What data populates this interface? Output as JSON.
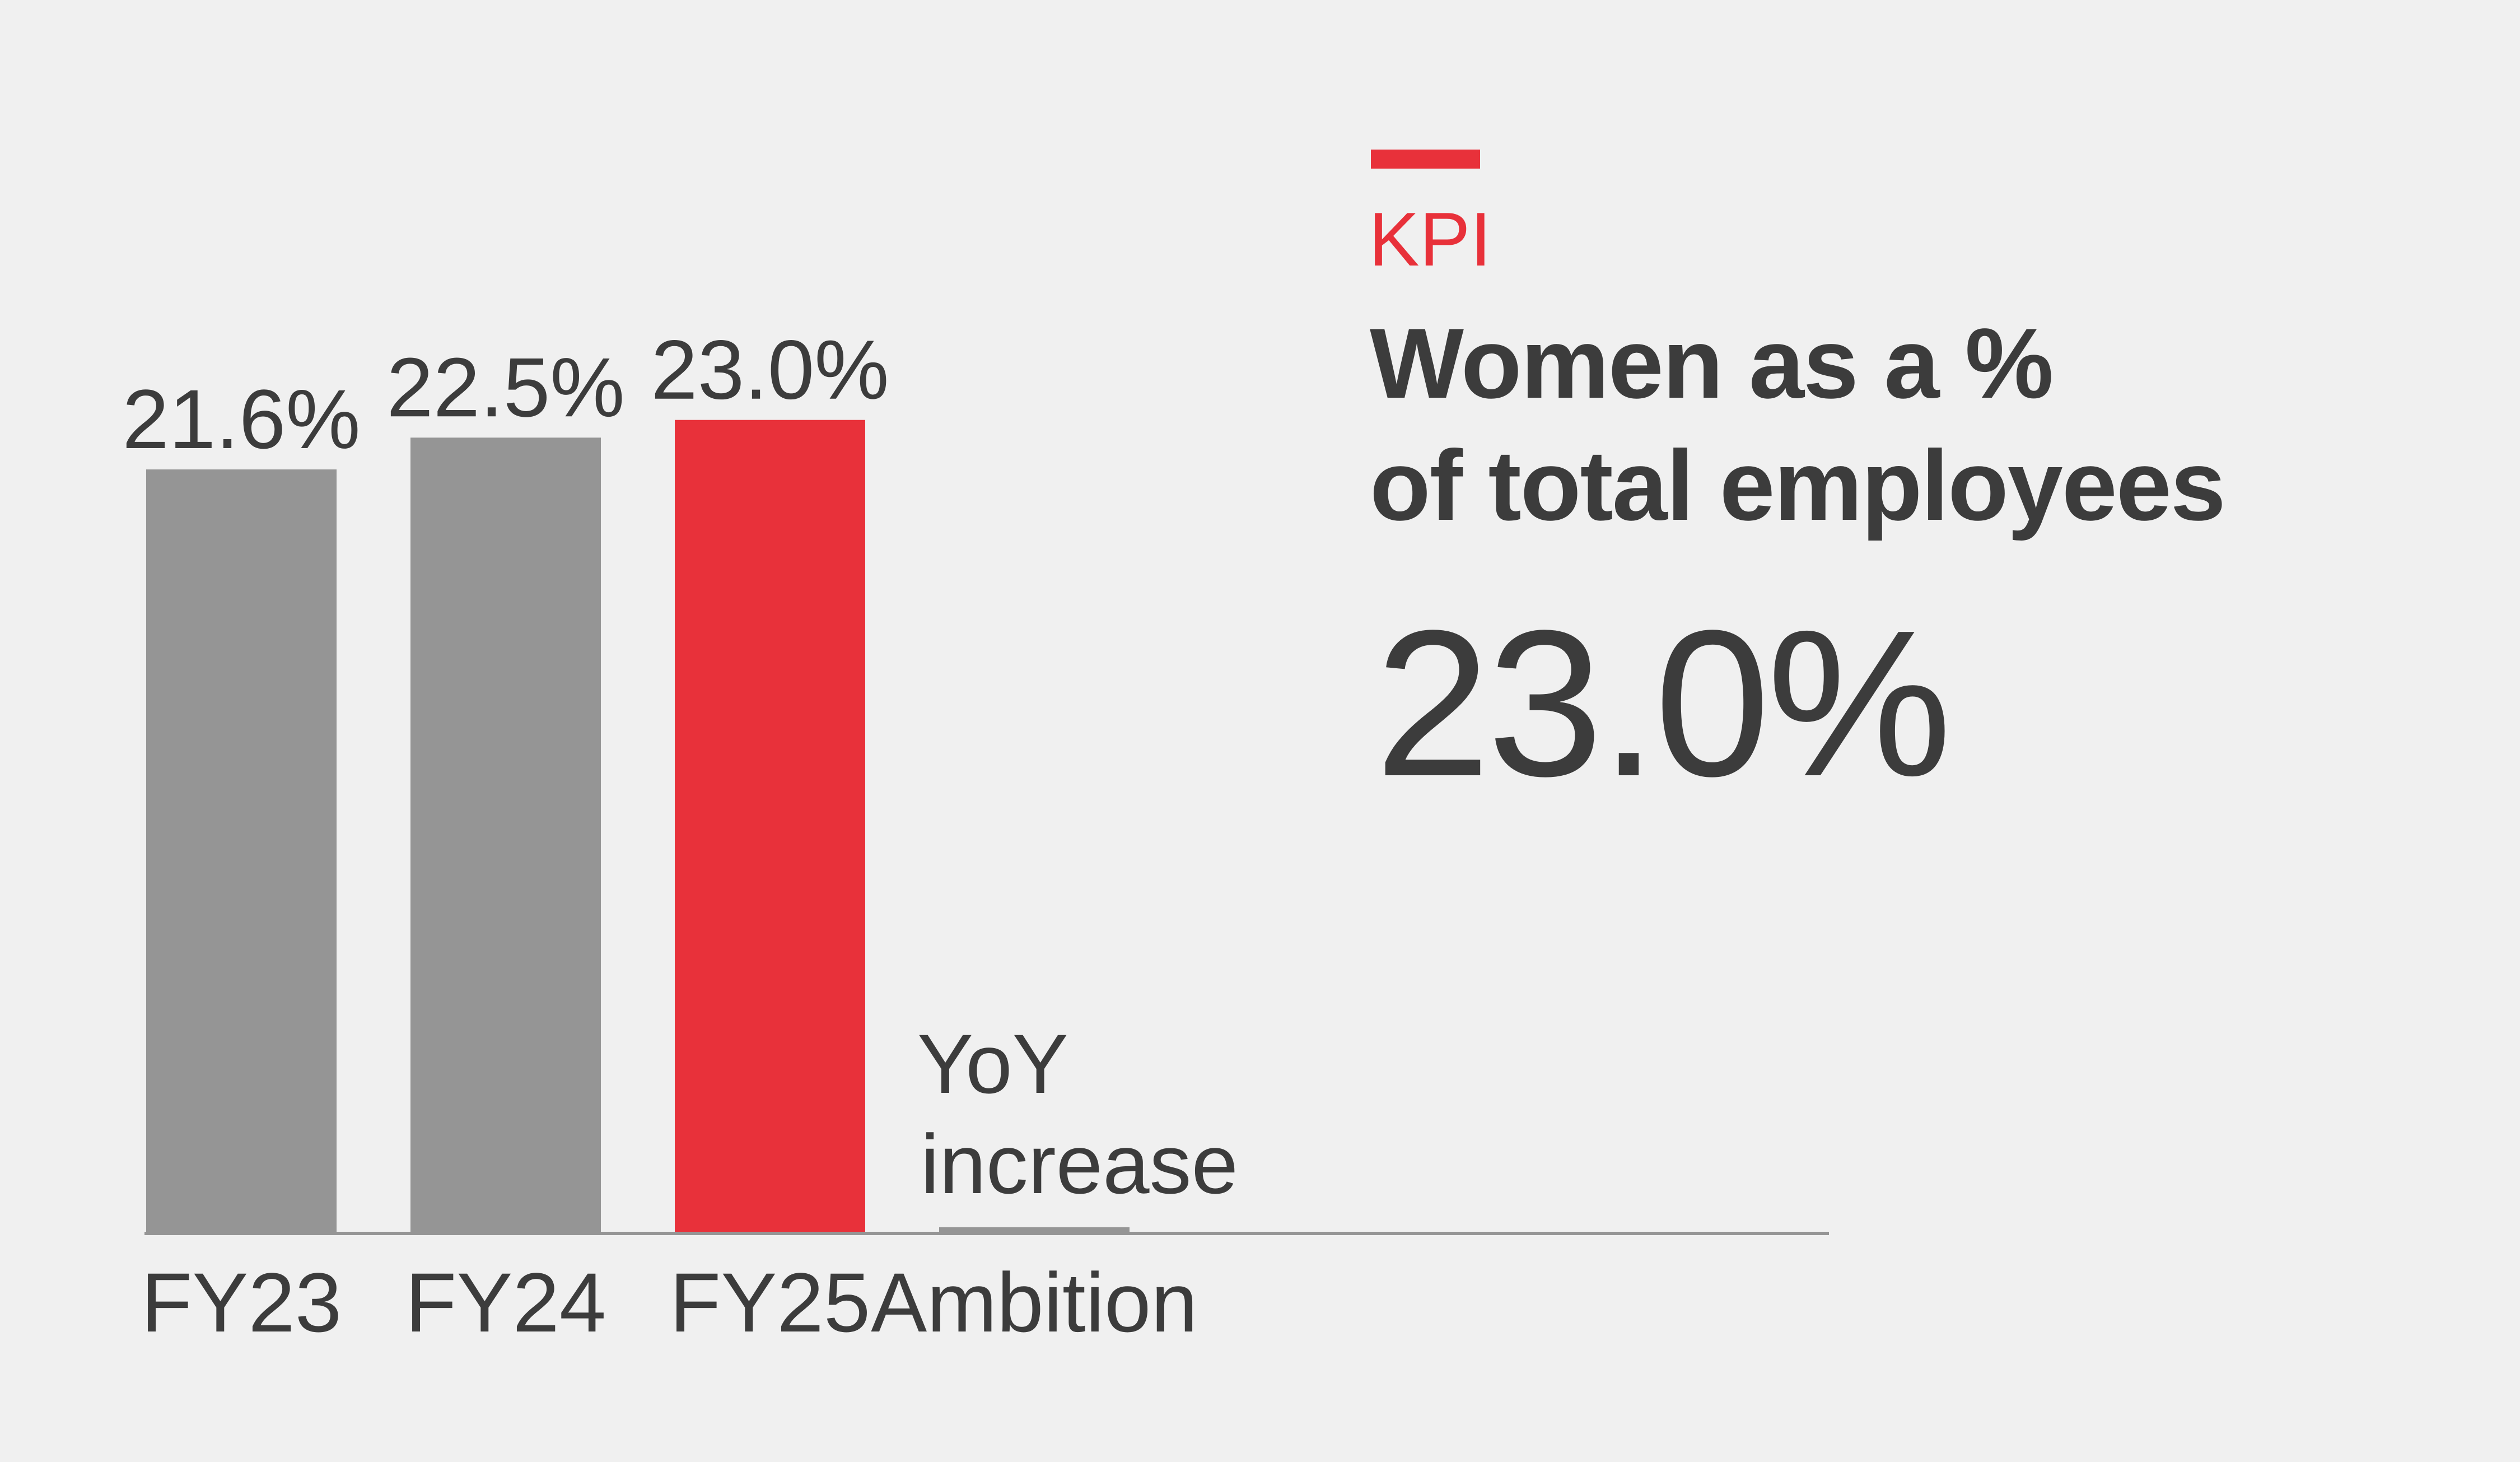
{
  "kpi": {
    "tag": "KPI",
    "title_line1": "Women as a %",
    "title_line2": "of total employees",
    "value": "23.0%",
    "accent_color": "#e8313a"
  },
  "chart_data": {
    "type": "bar",
    "categories": [
      "FY23",
      "FY24",
      "FY25",
      "Ambition"
    ],
    "values": [
      21.6,
      22.5,
      23.0,
      null
    ],
    "data_labels": [
      "21.6%",
      "22.5%",
      "23.0%",
      ""
    ],
    "bar_colors": [
      "#959595",
      "#959595",
      "#e8313a",
      "#959595"
    ],
    "ambition_note": "YoY increase",
    "ambition_note_lines": [
      "YoY",
      "increase"
    ],
    "ylim": [
      0,
      23.0
    ],
    "grid": false,
    "legend": "none",
    "title": "",
    "xlabel": "",
    "ylabel": ""
  }
}
